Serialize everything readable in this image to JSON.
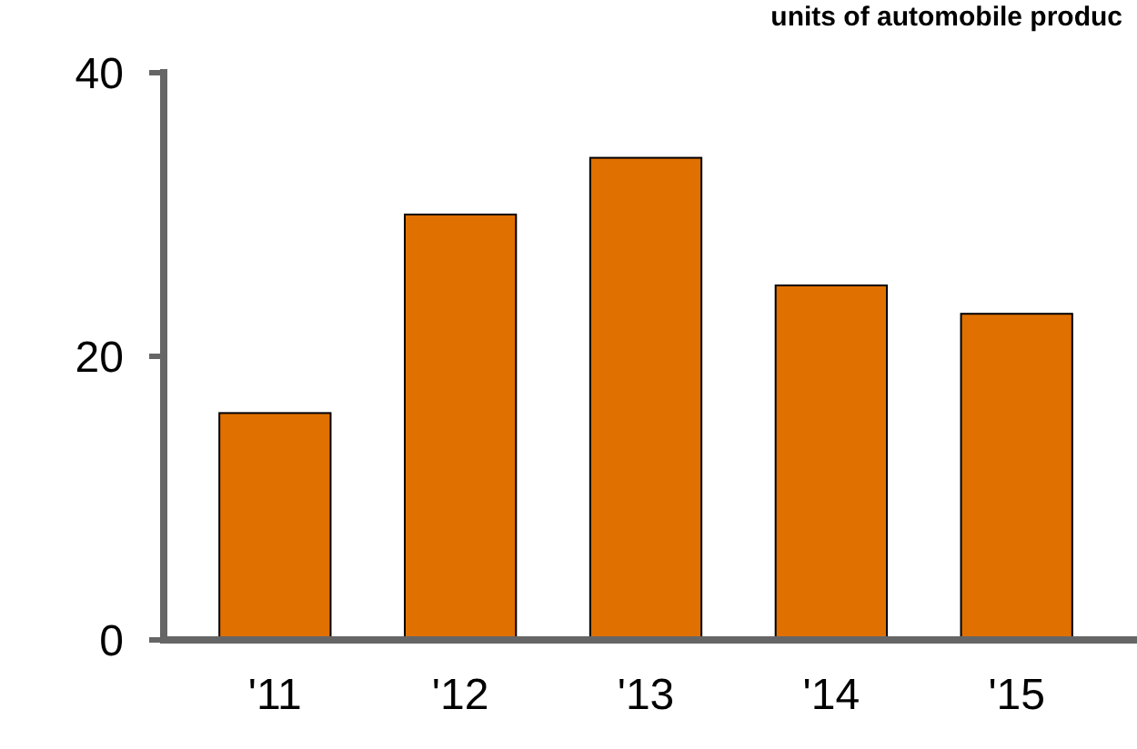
{
  "chart_data": {
    "type": "bar",
    "categories": [
      "'11",
      "'12",
      "'13",
      "'14",
      "'15"
    ],
    "values": [
      16,
      30,
      34,
      25,
      23
    ],
    "color": "#e07000",
    "ylim": [
      0,
      40
    ],
    "yticks": [
      0,
      20,
      40
    ],
    "grid": false,
    "annotations": [
      "units of automobile produc"
    ]
  }
}
